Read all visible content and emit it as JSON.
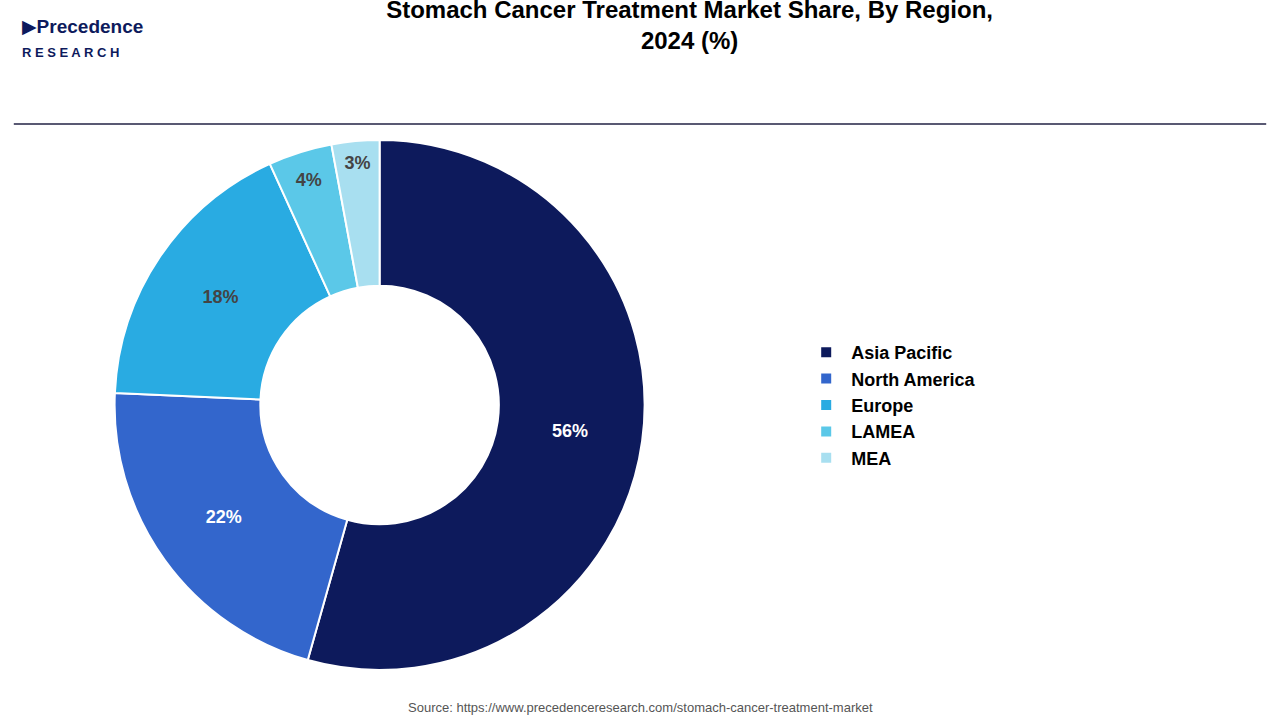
{
  "chart_data": {
    "type": "pie",
    "title": "Stomach Cancer Treatment Market Share, By Region,\n2024 (%)",
    "categories": [
      "Asia Pacific",
      "North America",
      "Europe",
      "LAMEA",
      "MEA"
    ],
    "values": [
      56,
      22,
      18,
      4,
      3
    ],
    "value_labels": [
      "56%",
      "22%",
      "18%",
      "4%",
      "3%"
    ],
    "colors": [
      "#0d1a5c",
      "#3366cc",
      "#29abe2",
      "#5bc8e8",
      "#a8dff0"
    ],
    "data_labels": true,
    "legend": "right",
    "annotations": [
      "▶Precedence",
      "R E S E A R C H",
      "Source: https://www.precedenceresearch.com/stomach-cancer-treatment-market"
    ]
  }
}
